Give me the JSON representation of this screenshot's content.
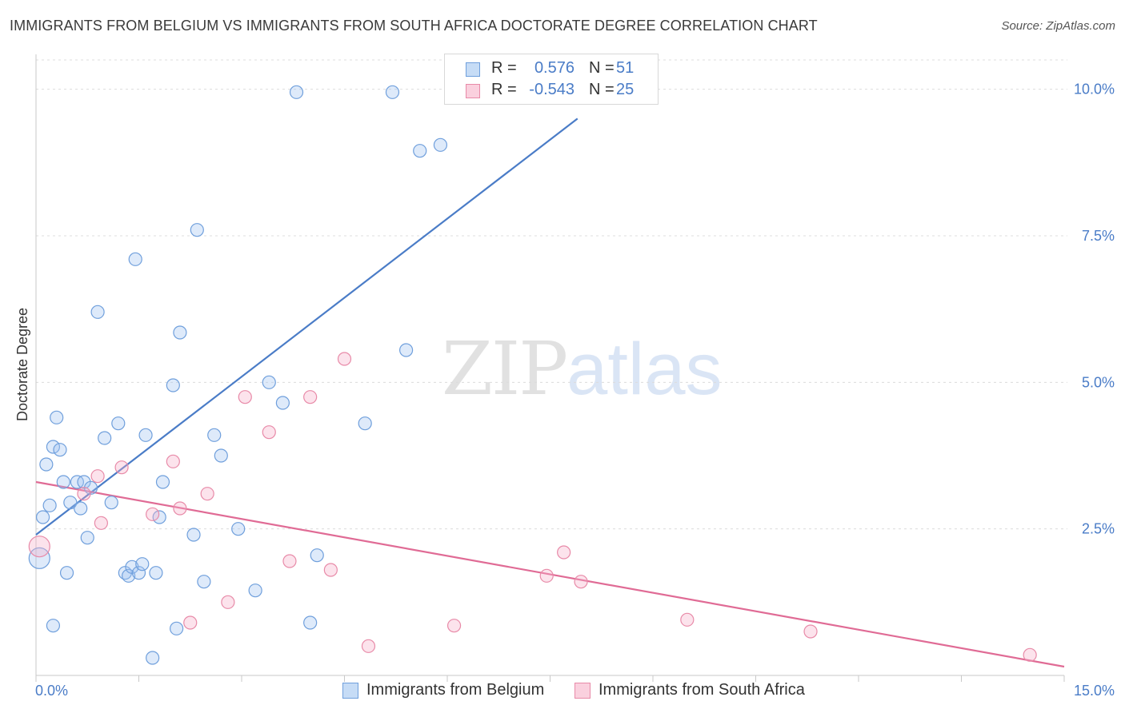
{
  "title": "IMMIGRANTS FROM BELGIUM VS IMMIGRANTS FROM SOUTH AFRICA DOCTORATE DEGREE CORRELATION CHART",
  "source": "Source: ZipAtlas.com",
  "watermark": {
    "zip": "ZIP",
    "atlas": "atlas"
  },
  "legend": {
    "rows": [
      {
        "r_label": "R =",
        "r_value": "0.576",
        "n_label": "N =",
        "n_value": "51",
        "color": "#6f9fdc"
      },
      {
        "r_label": "R =",
        "r_value": "-0.543",
        "n_label": "N =",
        "n_value": "25",
        "color": "#e88aa8"
      }
    ]
  },
  "bottom_legend": {
    "belgium": "Immigrants from Belgium",
    "south_africa": "Immigrants from South Africa"
  },
  "chart_data": {
    "type": "scatter",
    "title": "IMMIGRANTS FROM BELGIUM VS IMMIGRANTS FROM SOUTH AFRICA DOCTORATE DEGREE CORRELATION CHART",
    "xlabel": "",
    "ylabel": "Doctorate Degree",
    "xlim": [
      0,
      15
    ],
    "ylim": [
      0,
      10.5
    ],
    "x_tick_labels": [
      "0.0%",
      "15.0%"
    ],
    "y_ticks": [
      2.5,
      5.0,
      7.5,
      10.0
    ],
    "y_tick_labels": [
      "2.5%",
      "5.0%",
      "7.5%",
      "10.0%"
    ],
    "grid": true,
    "colors": {
      "belgium": "#4a7cc7",
      "south_africa": "#e06b95"
    },
    "series": [
      {
        "name": "Immigrants from Belgium",
        "points": [
          [
            0.05,
            2.0
          ],
          [
            0.1,
            2.7
          ],
          [
            0.15,
            3.6
          ],
          [
            0.2,
            2.9
          ],
          [
            0.25,
            3.9
          ],
          [
            0.3,
            4.4
          ],
          [
            0.35,
            3.85
          ],
          [
            0.4,
            3.3
          ],
          [
            0.45,
            1.75
          ],
          [
            0.5,
            2.95
          ],
          [
            0.6,
            3.3
          ],
          [
            0.65,
            2.85
          ],
          [
            0.7,
            3.3
          ],
          [
            0.75,
            2.35
          ],
          [
            0.8,
            3.2
          ],
          [
            0.9,
            6.2
          ],
          [
            1.0,
            4.05
          ],
          [
            1.1,
            2.95
          ],
          [
            1.2,
            4.3
          ],
          [
            1.3,
            1.75
          ],
          [
            1.35,
            1.7
          ],
          [
            1.4,
            1.85
          ],
          [
            1.45,
            7.1
          ],
          [
            1.5,
            1.75
          ],
          [
            1.55,
            1.9
          ],
          [
            1.6,
            4.1
          ],
          [
            1.7,
            0.3
          ],
          [
            1.75,
            1.75
          ],
          [
            1.8,
            2.7
          ],
          [
            1.85,
            3.3
          ],
          [
            2.0,
            4.95
          ],
          [
            2.05,
            0.8
          ],
          [
            2.1,
            5.85
          ],
          [
            2.3,
            2.4
          ],
          [
            2.35,
            7.6
          ],
          [
            2.45,
            1.6
          ],
          [
            2.6,
            4.1
          ],
          [
            2.7,
            3.75
          ],
          [
            2.95,
            2.5
          ],
          [
            3.2,
            1.45
          ],
          [
            3.4,
            5.0
          ],
          [
            3.6,
            4.65
          ],
          [
            3.8,
            9.95
          ],
          [
            4.0,
            0.9
          ],
          [
            4.1,
            2.05
          ],
          [
            4.8,
            4.3
          ],
          [
            5.2,
            9.95
          ],
          [
            5.4,
            5.55
          ],
          [
            5.6,
            8.95
          ],
          [
            5.9,
            9.05
          ],
          [
            0.25,
            0.85
          ]
        ]
      },
      {
        "name": "Immigrants from South Africa",
        "points": [
          [
            0.05,
            2.2
          ],
          [
            0.7,
            3.1
          ],
          [
            0.9,
            3.4
          ],
          [
            0.95,
            2.6
          ],
          [
            1.25,
            3.55
          ],
          [
            1.7,
            2.75
          ],
          [
            2.0,
            3.65
          ],
          [
            2.1,
            2.85
          ],
          [
            2.25,
            0.9
          ],
          [
            2.5,
            3.1
          ],
          [
            2.8,
            1.25
          ],
          [
            3.05,
            4.75
          ],
          [
            3.4,
            4.15
          ],
          [
            3.7,
            1.95
          ],
          [
            4.0,
            4.75
          ],
          [
            4.3,
            1.8
          ],
          [
            4.5,
            5.4
          ],
          [
            4.85,
            0.5
          ],
          [
            6.1,
            0.85
          ],
          [
            7.45,
            1.7
          ],
          [
            7.7,
            2.1
          ],
          [
            7.95,
            1.6
          ],
          [
            9.5,
            0.95
          ],
          [
            11.3,
            0.75
          ],
          [
            14.5,
            0.35
          ]
        ]
      }
    ],
    "trendlines": [
      {
        "name": "Immigrants from Belgium",
        "x": [
          0.0,
          7.9
        ],
        "y": [
          2.4,
          9.5
        ]
      },
      {
        "name": "Immigrants from South Africa",
        "x": [
          0.0,
          15.0
        ],
        "y": [
          3.3,
          0.15
        ]
      }
    ]
  }
}
